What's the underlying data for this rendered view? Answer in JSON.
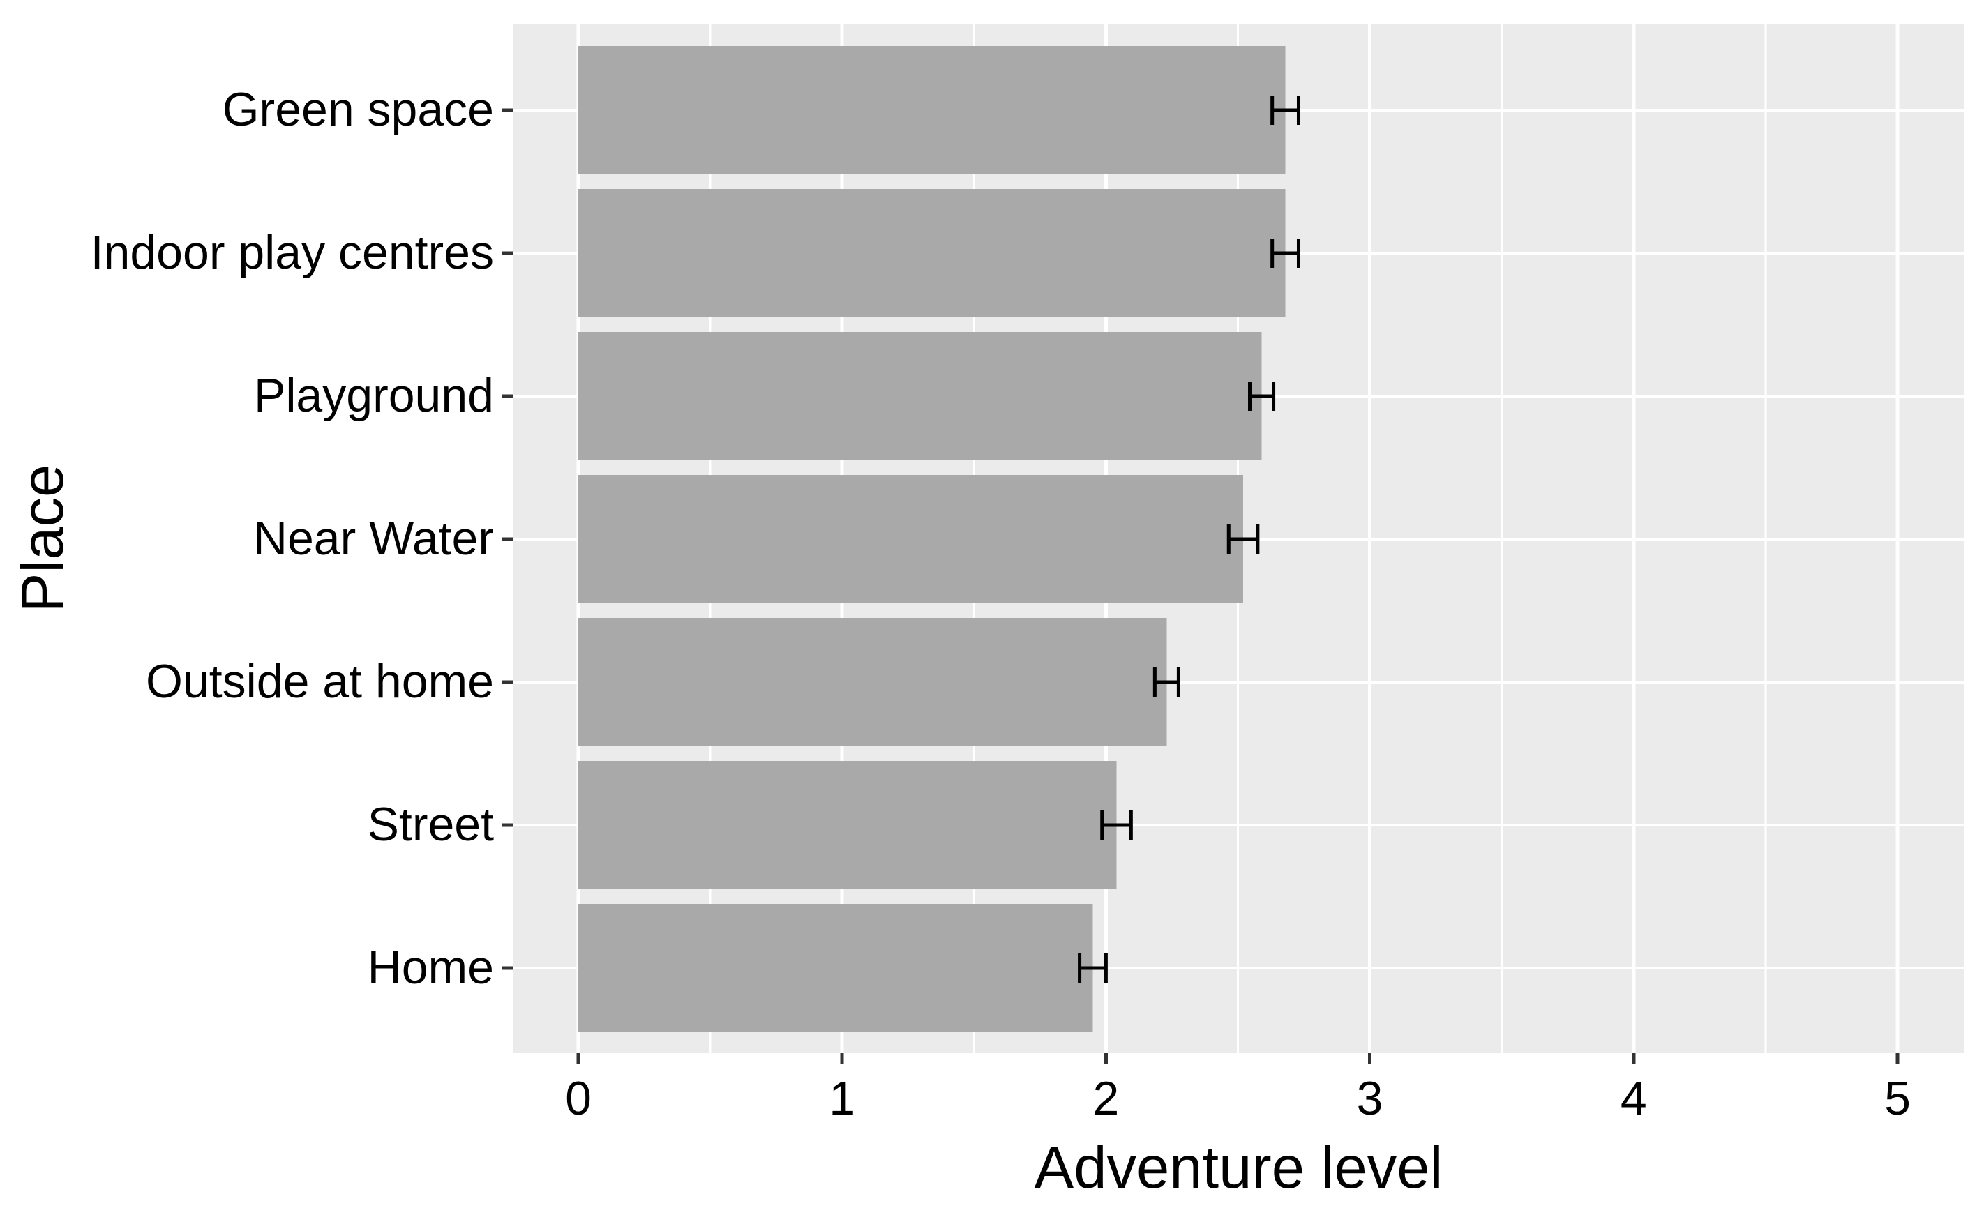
{
  "chart_data": {
    "type": "bar",
    "orientation": "horizontal",
    "title": "",
    "xlabel": "Adventure level",
    "ylabel": "Place",
    "categories": [
      "Green space",
      "Indoor play centres",
      "Playground",
      "Near Water",
      "Outside at home",
      "Street",
      "Home"
    ],
    "series": [
      {
        "name": "Adventure level mean",
        "values": [
          2.68,
          2.68,
          2.59,
          2.52,
          2.23,
          2.04,
          1.95
        ],
        "errors": [
          0.05,
          0.05,
          0.045,
          0.055,
          0.045,
          0.055,
          0.05
        ]
      }
    ],
    "xlim": [
      0,
      5.25
    ],
    "x_ticks": [
      0,
      1,
      2,
      3,
      4,
      5
    ],
    "x_minor_ticks": [
      0.5,
      1.5,
      2.5,
      3.5,
      4.5
    ],
    "grid": "major-and-minor",
    "legend": false,
    "error_bars": true,
    "style": {
      "page_bg": "#FFFFFF",
      "panel_bg": "#EBEBEB",
      "bar_fill": "#A9A9A9",
      "grid_color": "#FFFFFF",
      "error_color": "#000000",
      "tick_mark_color": "#333333",
      "text_color": "#000000"
    }
  }
}
